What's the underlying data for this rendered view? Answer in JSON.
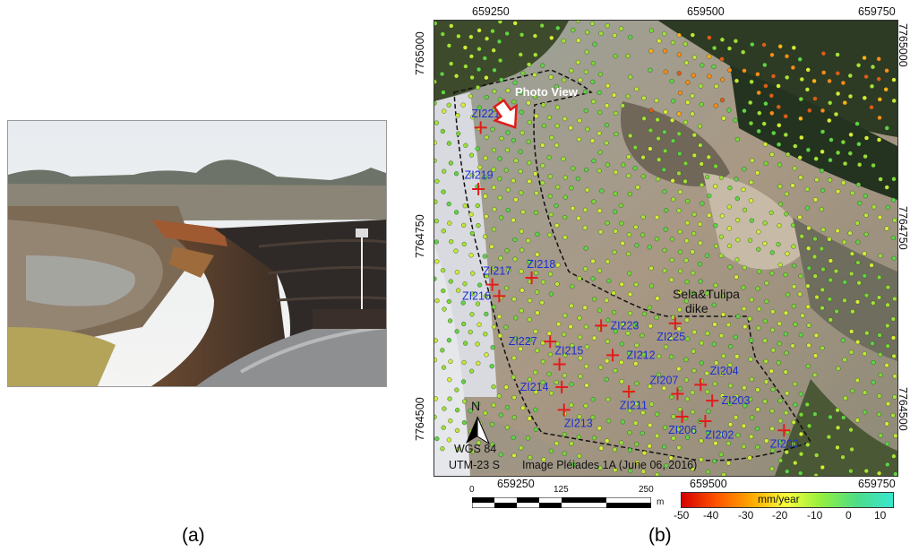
{
  "panels": {
    "a_label": "(a)",
    "b_label": "(b)"
  },
  "map": {
    "top_x_labels": [
      "659250",
      "659500",
      "659750"
    ],
    "bottom_x_labels": [
      "659250",
      "659500",
      "659750"
    ],
    "left_y_labels": [
      "7765000",
      "7764750",
      "7764500"
    ],
    "right_y_labels": [
      "7765000",
      "7764750",
      "7764500"
    ],
    "photo_view_label": "Photo View",
    "dike_label_line1": "Sela&Tulipa",
    "dike_label_line2": "dike",
    "image_credit": "Image Pléiades 1A  (June 06, 2016)",
    "north_label": "N",
    "datum": "WGS 84",
    "projection": "UTM-23 S",
    "zones": [
      {
        "id": "ZI221",
        "u": 0.1,
        "v": 0.235,
        "lx": -0.02,
        "ly": -0.03
      },
      {
        "id": "ZI219",
        "u": 0.095,
        "v": 0.37,
        "lx": -0.03,
        "ly": -0.03
      },
      {
        "id": "ZI217",
        "u": 0.125,
        "v": 0.58,
        "lx": -0.02,
        "ly": -0.03
      },
      {
        "id": "ZI218",
        "u": 0.21,
        "v": 0.565,
        "lx": -0.01,
        "ly": -0.03
      },
      {
        "id": "ZI216",
        "u": 0.14,
        "v": 0.605,
        "lx": -0.08,
        "ly": 0.0
      },
      {
        "id": "ZI227",
        "u": 0.25,
        "v": 0.705,
        "lx": -0.09,
        "ly": 0.0
      },
      {
        "id": "ZI223",
        "u": 0.36,
        "v": 0.67,
        "lx": 0.02,
        "ly": 0.0
      },
      {
        "id": "ZI225",
        "u": 0.52,
        "v": 0.665,
        "lx": -0.04,
        "ly": 0.03
      },
      {
        "id": "ZI212",
        "u": 0.385,
        "v": 0.735,
        "lx": 0.03,
        "ly": 0.0
      },
      {
        "id": "ZI215",
        "u": 0.27,
        "v": 0.755,
        "lx": -0.01,
        "ly": -0.03
      },
      {
        "id": "ZI214",
        "u": 0.275,
        "v": 0.805,
        "lx": -0.09,
        "ly": 0.0
      },
      {
        "id": "ZI213",
        "u": 0.28,
        "v": 0.855,
        "lx": 0.0,
        "ly": 0.03
      },
      {
        "id": "ZI211",
        "u": 0.42,
        "v": 0.815,
        "lx": -0.02,
        "ly": 0.03
      },
      {
        "id": "ZI207",
        "u": 0.525,
        "v": 0.82,
        "lx": -0.06,
        "ly": -0.03
      },
      {
        "id": "ZI204",
        "u": 0.575,
        "v": 0.8,
        "lx": 0.02,
        "ly": -0.03
      },
      {
        "id": "ZI203",
        "u": 0.6,
        "v": 0.835,
        "lx": 0.02,
        "ly": 0.0
      },
      {
        "id": "ZI206",
        "u": 0.535,
        "v": 0.87,
        "lx": -0.03,
        "ly": 0.03
      },
      {
        "id": "ZI202",
        "u": 0.585,
        "v": 0.88,
        "lx": 0.0,
        "ly": 0.03
      },
      {
        "id": "ZI200",
        "u": 0.755,
        "v": 0.9,
        "lx": -0.03,
        "ly": 0.03
      }
    ]
  },
  "scale_bar": {
    "labels": [
      "0",
      "125",
      "250"
    ],
    "unit": "m"
  },
  "colorbar": {
    "title": "mm/year",
    "ticks": [
      "-50",
      "-40",
      "-30",
      "-20",
      "-10",
      "0",
      "10"
    ],
    "min": -50,
    "max": 10,
    "colors": [
      "#d40000",
      "#ff5500",
      "#ffaa00",
      "#f5ff3c",
      "#90ee40",
      "#4cdc8a",
      "#39e6cf"
    ]
  }
}
